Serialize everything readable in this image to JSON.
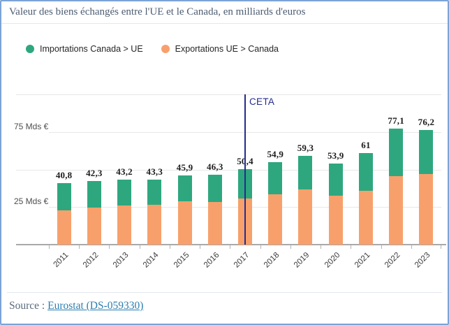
{
  "header": {
    "title": "Valeur des biens échangés entre l'UE et le Canada, en milliards d'euros"
  },
  "legend": {
    "items": [
      {
        "label": "Importations Canada > UE",
        "color": "#2EA77F"
      },
      {
        "label": "Exportations UE > Canada",
        "color": "#F8A06C"
      }
    ]
  },
  "chart_data": {
    "type": "bar",
    "stacked": true,
    "title": "Valeur des biens échangés entre l'UE et le Canada, en milliards d'euros",
    "unit": "milliards d'euros",
    "categories": [
      "2011",
      "2012",
      "2013",
      "2014",
      "2015",
      "2016",
      "2017",
      "2018",
      "2019",
      "2020",
      "2021",
      "2022",
      "2023"
    ],
    "series": [
      {
        "name": "Exportations UE > Canada",
        "color": "#F8A06C",
        "stack": "bottom",
        "values": [
          22.8,
          24.5,
          25.9,
          26.4,
          28.8,
          28.3,
          30.7,
          33.5,
          36.8,
          32.5,
          35.8,
          45.8,
          47.2
        ]
      },
      {
        "name": "Importations Canada > UE",
        "color": "#2EA77F",
        "stack": "top",
        "values": [
          18.0,
          17.8,
          17.3,
          16.9,
          17.1,
          18.0,
          19.7,
          21.4,
          22.5,
          21.4,
          25.2,
          31.3,
          29.0
        ]
      }
    ],
    "totals": [
      40.8,
      42.3,
      43.2,
      43.3,
      45.9,
      46.3,
      50.4,
      54.9,
      59.3,
      53.9,
      61,
      77.1,
      76.2
    ],
    "total_labels": [
      "40,8",
      "42,3",
      "43,2",
      "43,3",
      "45,9",
      "46,3",
      "50,4",
      "54,9",
      "59,3",
      "53,9",
      "61",
      "77,1",
      "76,2"
    ],
    "y_axis": {
      "min": 0,
      "max": 100,
      "ticks": [
        {
          "value": 25,
          "label": "25 Mds €"
        },
        {
          "value": 50,
          "label": ""
        },
        {
          "value": 75,
          "label": "75 Mds €"
        },
        {
          "value": 100,
          "label": ""
        }
      ]
    },
    "annotation": {
      "label": "CETA",
      "category": "2017",
      "color": "#232C8C"
    },
    "legend_position": "top-left",
    "grid": true
  },
  "footer": {
    "prefix": "Source :",
    "link_text": "Eurostat (DS-059330)"
  },
  "colors": {
    "frame_border": "#7BA3D6",
    "gridline": "#E8E8E8",
    "axis": "#A9A9A9",
    "title_text": "#4C5C72",
    "link": "#2D7FB0"
  }
}
